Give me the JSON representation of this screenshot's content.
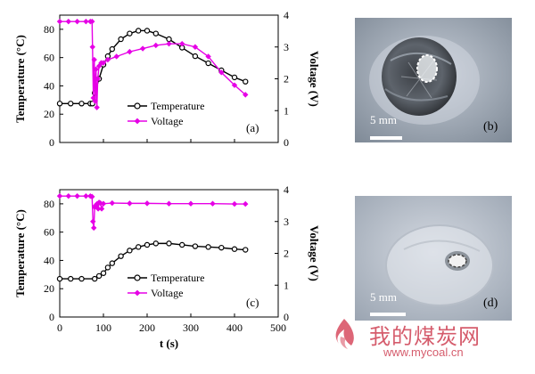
{
  "chart_data": [
    {
      "type": "line",
      "panel_label": "(a)",
      "xlim": [
        0,
        500
      ],
      "ylim": [
        0,
        90
      ],
      "y2lim": [
        0,
        4
      ],
      "yticks": [
        0,
        20,
        40,
        60,
        80
      ],
      "y2ticks": [
        0,
        1,
        2,
        3,
        4
      ],
      "ylabel": "Temperature (°C)",
      "y2label": "Voltage (V)",
      "legend_position": "middle-left",
      "series": [
        {
          "name": "Temperature",
          "axis": "left",
          "color": "#000000",
          "marker": "open-circle",
          "x": [
            0,
            25,
            50,
            70,
            75,
            80,
            90,
            100,
            110,
            120,
            140,
            160,
            180,
            200,
            220,
            250,
            280,
            310,
            340,
            370,
            400,
            425
          ],
          "y": [
            27.5,
            27.5,
            27.5,
            27.5,
            27.5,
            35,
            45,
            55,
            61,
            66,
            73,
            77,
            79,
            79,
            77,
            73,
            67,
            61,
            56,
            51,
            46,
            43
          ]
        },
        {
          "name": "Voltage",
          "axis": "right",
          "color": "#e600e6",
          "marker": "filled-diamond",
          "x": [
            0,
            20,
            40,
            60,
            70,
            74,
            75,
            77,
            79,
            81,
            83,
            85,
            87,
            90,
            95,
            100,
            110,
            130,
            160,
            190,
            220,
            250,
            280,
            310,
            340,
            370,
            400,
            425
          ],
          "y": [
            3.8,
            3.8,
            3.8,
            3.8,
            3.8,
            3.8,
            3.0,
            1.4,
            2.6,
            1.3,
            2.3,
            1.1,
            2.0,
            2.4,
            2.5,
            2.5,
            2.6,
            2.7,
            2.85,
            2.95,
            3.05,
            3.1,
            3.1,
            3.0,
            2.7,
            2.2,
            1.8,
            1.5
          ]
        }
      ]
    },
    {
      "type": "line",
      "panel_label": "(c)",
      "xlim": [
        0,
        500
      ],
      "ylim": [
        0,
        90
      ],
      "y2lim": [
        0,
        4
      ],
      "yticks": [
        0,
        20,
        40,
        60,
        80
      ],
      "y2ticks": [
        0,
        1,
        2,
        3,
        4
      ],
      "xticks": [
        0,
        100,
        200,
        300,
        400,
        500
      ],
      "xlabel": "t (s)",
      "ylabel": "Temperature (°C)",
      "y2label": "Voltage (V)",
      "legend_position": "middle-left",
      "series": [
        {
          "name": "Temperature",
          "axis": "left",
          "color": "#000000",
          "marker": "open-circle",
          "x": [
            0,
            25,
            50,
            80,
            90,
            100,
            110,
            120,
            140,
            160,
            180,
            200,
            220,
            250,
            280,
            310,
            340,
            370,
            400,
            425
          ],
          "y": [
            27,
            27,
            27,
            27,
            29,
            31,
            35,
            38,
            43,
            47,
            49.5,
            51,
            52,
            52,
            51,
            50,
            49.5,
            49,
            48,
            47.5
          ]
        },
        {
          "name": "Voltage",
          "axis": "right",
          "color": "#e600e6",
          "marker": "filled-diamond",
          "x": [
            0,
            20,
            40,
            60,
            70,
            74,
            76,
            78,
            80,
            82,
            85,
            88,
            90,
            93,
            96,
            100,
            120,
            160,
            200,
            250,
            300,
            350,
            400,
            425
          ],
          "y": [
            3.8,
            3.8,
            3.8,
            3.8,
            3.8,
            3.78,
            3.0,
            2.8,
            3.45,
            3.5,
            3.55,
            3.4,
            3.6,
            3.58,
            3.4,
            3.56,
            3.58,
            3.57,
            3.57,
            3.56,
            3.56,
            3.56,
            3.55,
            3.55
          ]
        }
      ]
    }
  ],
  "photos": [
    {
      "label": "(b)",
      "scale_bar": "5 mm"
    },
    {
      "label": "(d)",
      "scale_bar": "5 mm"
    }
  ],
  "watermark": {
    "text": "我的煤炭网",
    "url": "www.mycoal.cn",
    "color": "#cc2233"
  }
}
